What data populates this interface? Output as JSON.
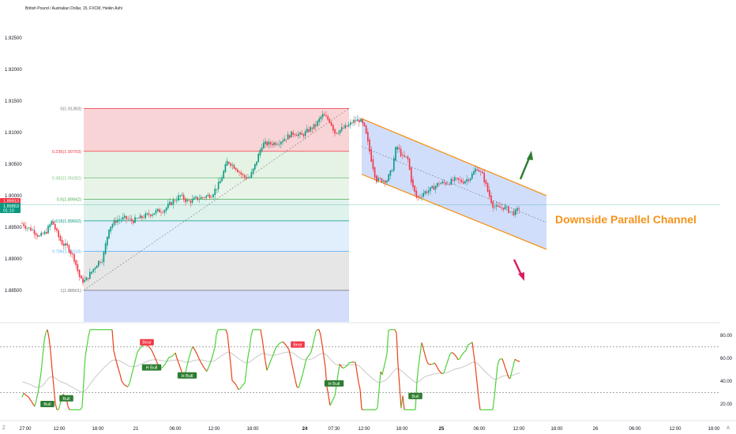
{
  "chart_data": [
    {
      "type": "candlestick",
      "title": "British Pound / Australian Dollar, 15, FXCM, Heikin Ashi",
      "y_axis": {
        "ticks": [
          "1.92500",
          "1.92000",
          "1.91500",
          "1.91000",
          "1.90500",
          "1.90000",
          "1.89500",
          "1.89000",
          "1.88500"
        ],
        "ylim": [
          1.8825,
          1.929
        ]
      },
      "x_axis": {
        "ticks": [
          "27:00",
          "12:00",
          "18:00",
          "21",
          "06:00",
          "12:00",
          "18:00",
          "24",
          "07:30",
          "12:00",
          "18:00",
          "25",
          "06:00",
          "12:00",
          "18:00",
          "26",
          "06:00",
          "12:00",
          "18:00"
        ],
        "bold_ticks": [
          "24",
          "25"
        ]
      },
      "price_labels": [
        {
          "value": "1.89913",
          "y": 1.89913,
          "color": "#f23645"
        },
        {
          "value": "1.89853",
          "y": 1.89853,
          "color": "#089981"
        },
        {
          "value": "01:10",
          "y": 1.898,
          "color": "#089981"
        }
      ],
      "price_path": [
        [
          0,
          1.9068
        ],
        [
          6,
          1.9005
        ],
        [
          14,
          1.8985
        ],
        [
          24,
          1.896
        ],
        [
          34,
          1.895
        ],
        [
          42,
          1.8945
        ],
        [
          50,
          1.8935
        ],
        [
          58,
          1.8942
        ],
        [
          66,
          1.896
        ],
        [
          72,
          1.894
        ],
        [
          78,
          1.8925
        ],
        [
          86,
          1.8918
        ],
        [
          94,
          1.89
        ],
        [
          102,
          1.8865
        ],
        [
          108,
          1.8865
        ],
        [
          116,
          1.888
        ],
        [
          124,
          1.8895
        ],
        [
          130,
          1.89
        ],
        [
          138,
          1.895
        ],
        [
          148,
          1.8962
        ],
        [
          158,
          1.8964
        ],
        [
          168,
          1.896
        ],
        [
          178,
          1.8965
        ],
        [
          188,
          1.897
        ],
        [
          198,
          1.8975
        ],
        [
          208,
          1.8978
        ],
        [
          218,
          1.899
        ],
        [
          228,
          1.9
        ],
        [
          238,
          1.899
        ],
        [
          248,
          1.8995
        ],
        [
          258,
          1.8998
        ],
        [
          268,
          1.9002
        ],
        [
          278,
          1.902
        ],
        [
          288,
          1.9055
        ],
        [
          298,
          1.9045
        ],
        [
          308,
          1.903
        ],
        [
          316,
          1.9028
        ],
        [
          322,
          1.9045
        ],
        [
          332,
          1.9082
        ],
        [
          342,
          1.9082
        ],
        [
          352,
          1.9085
        ],
        [
          362,
          1.9092
        ],
        [
          372,
          1.91
        ],
        [
          382,
          1.9095
        ],
        [
          392,
          1.9105
        ],
        [
          400,
          1.9112
        ],
        [
          408,
          1.9128
        ],
        [
          418,
          1.9118
        ],
        [
          424,
          1.91
        ],
        [
          432,
          1.9105
        ],
        [
          440,
          1.911
        ],
        [
          448,
          1.9118
        ],
        [
          456,
          1.912
        ],
        [
          462,
          1.9105
        ],
        [
          468,
          1.907
        ],
        [
          476,
          1.9025
        ],
        [
          484,
          1.9025
        ],
        [
          490,
          1.9025
        ],
        [
          496,
          1.904
        ],
        [
          502,
          1.908
        ],
        [
          510,
          1.906
        ],
        [
          516,
          1.906
        ],
        [
          522,
          1.9015
        ],
        [
          528,
          1.8995
        ],
        [
          536,
          1.9005
        ],
        [
          546,
          1.901
        ],
        [
          556,
          1.902
        ],
        [
          566,
          1.902
        ],
        [
          576,
          1.9025
        ],
        [
          586,
          1.9022
        ],
        [
          596,
          1.903
        ],
        [
          604,
          1.9045
        ],
        [
          612,
          1.903
        ],
        [
          618,
          1.9005
        ],
        [
          624,
          1.8985
        ],
        [
          630,
          1.898
        ],
        [
          638,
          1.8982
        ],
        [
          646,
          1.8975
        ],
        [
          652,
          1.8972
        ],
        [
          658,
          1.8982
        ]
      ],
      "fibonacci": [
        {
          "label": "0(1.91383)",
          "value": 1.91383,
          "line_color": "#f23645",
          "text_color": "#777777"
        },
        {
          "label": "0.236(1.90703)",
          "value": 1.90703,
          "line_color": "#f23645",
          "text_color": "#f23645"
        },
        {
          "label": "0.382(1.90282)",
          "value": 1.90282,
          "line_color": "#81c784",
          "text_color": "#81c784"
        },
        {
          "label": "0.5(1.89942)",
          "value": 1.89942,
          "line_color": "#4caf50",
          "text_color": "#4caf50"
        },
        {
          "label": "0.618(1.89602)",
          "value": 1.89602,
          "line_color": "#089981",
          "text_color": "#089981"
        },
        {
          "label": "0.786(1.89118)",
          "value": 1.89118,
          "line_color": "#64b5f6",
          "text_color": "#64b5f6"
        },
        {
          "label": "1(1.88501)",
          "value": 1.88501,
          "line_color": "#787b86",
          "text_color": "#777777"
        }
      ],
      "channel": {
        "upper_start": [
          458,
          1.9122
        ],
        "upper_end": [
          692,
          1.9
        ],
        "lower_start": [
          458,
          1.9034
        ],
        "lower_end": [
          692,
          1.8915
        ],
        "line_color": "#f7931a",
        "fill_color": "#bcd0fa"
      },
      "annotation": "Downside Parallel Channel"
    },
    {
      "type": "line",
      "title": "",
      "y_axis": {
        "ticks": [
          "80.00",
          "60.00",
          "40.00",
          "20.00"
        ],
        "ylim": [
          10,
          92
        ]
      },
      "levels": [
        70,
        30
      ],
      "signals": [
        {
          "label": "Bull",
          "kind": "bull",
          "x": 60,
          "value": 20
        },
        {
          "label": "Bull",
          "kind": "bull",
          "x": 84,
          "value": 25
        },
        {
          "label": "Bear",
          "kind": "bear",
          "x": 186,
          "value": 74
        },
        {
          "label": "H Bull",
          "kind": "bull",
          "x": 192,
          "value": 52
        },
        {
          "label": "H Bull",
          "kind": "bull",
          "x": 237,
          "value": 45
        },
        {
          "label": "Bear",
          "kind": "bear",
          "x": 377,
          "value": 72
        },
        {
          "label": "H Bull",
          "kind": "bull",
          "x": 423,
          "value": 38
        },
        {
          "label": "Bull",
          "kind": "bull",
          "x": 526,
          "value": 27
        }
      ]
    }
  ]
}
